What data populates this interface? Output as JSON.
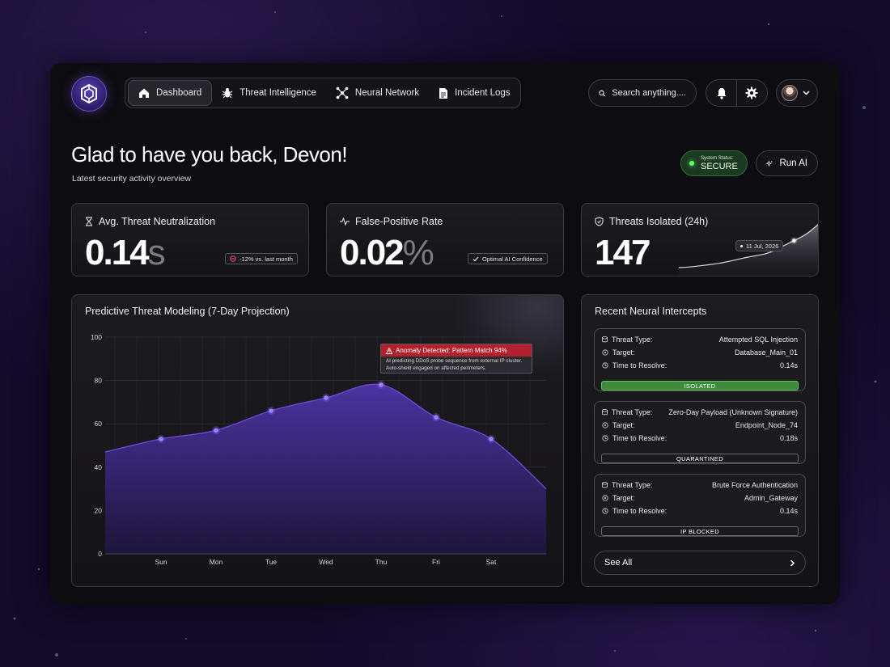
{
  "nav": {
    "items": [
      {
        "label": "Dashboard",
        "icon": "home-icon",
        "active": true
      },
      {
        "label": "Threat Intelligence",
        "icon": "bug-icon",
        "active": false
      },
      {
        "label": "Neural Network",
        "icon": "network-icon",
        "active": false
      },
      {
        "label": "Incident Logs",
        "icon": "document-icon",
        "active": false
      }
    ]
  },
  "search": {
    "placeholder": "Search anything...."
  },
  "header": {
    "title": "Glad to have you back, Devon!",
    "subtitle": "Latest security activity overview",
    "status_label": "System Status:",
    "status_value": "SECURE",
    "status_color": "#5cff6a",
    "run_ai_label": "Run AI"
  },
  "stats": {
    "neutralization": {
      "title": "Avg. Threat Neutralization",
      "value": "0.14",
      "unit": "s",
      "badge": "-12% vs. last month"
    },
    "false_positive": {
      "title": "False-Positive Rate",
      "value": "0.02",
      "unit": "%",
      "badge": "Optimal AI Confidence"
    },
    "isolated": {
      "title": "Threats Isolated (24h)",
      "value": "147",
      "tooltip": "11 Jul, 2026",
      "sparkline": [
        2,
        3,
        5,
        7,
        10,
        14,
        17,
        20,
        28,
        36,
        44,
        58
      ]
    }
  },
  "chart_data": {
    "type": "area",
    "title": "Predictive Threat Modeling (7-Day Projection)",
    "categories": [
      "Sun",
      "Mon",
      "Tue",
      "Wed",
      "Thu",
      "Fri",
      "Sat"
    ],
    "yticks": [
      0,
      20,
      40,
      60,
      80,
      100
    ],
    "ylim": [
      0,
      100
    ],
    "series": [
      {
        "values": [
          53,
          57,
          66,
          72,
          78,
          63,
          53
        ]
      }
    ],
    "line_color": "#6a48d6",
    "fill_color": "#3b2a84",
    "grid": true,
    "annotation": {
      "title": "Anomaly Detected: Pattern Match 94%",
      "line1": "AI predicting DDoS probe sequence from external IP cluster.",
      "line2": "Auto-shield engaged on affected perimeters.",
      "color": "#b3202e"
    }
  },
  "intercepts": {
    "title": "Recent Neural Intercepts",
    "keys": {
      "type": "Threat Type:",
      "target": "Target:",
      "time": "Time to Resolve:"
    },
    "items": [
      {
        "type": "Attempted SQL Injection",
        "target": "Database_Main_01",
        "time": "0.14s",
        "status": "ISOLATED",
        "status_color": "#3d8a3a"
      },
      {
        "type": "Zero-Day Payload (Unknown Signature)",
        "target": "Endpoint_Node_74",
        "time": "0.18s",
        "status": "QUARANTINED",
        "status_color": "#1a1a1e"
      },
      {
        "type": "Brute Force Authentication",
        "target": "Admin_Gateway",
        "time": "0.14s",
        "status": "IP BLOCKED",
        "status_color": "#1a1a1e"
      }
    ],
    "see_all": "See All"
  }
}
